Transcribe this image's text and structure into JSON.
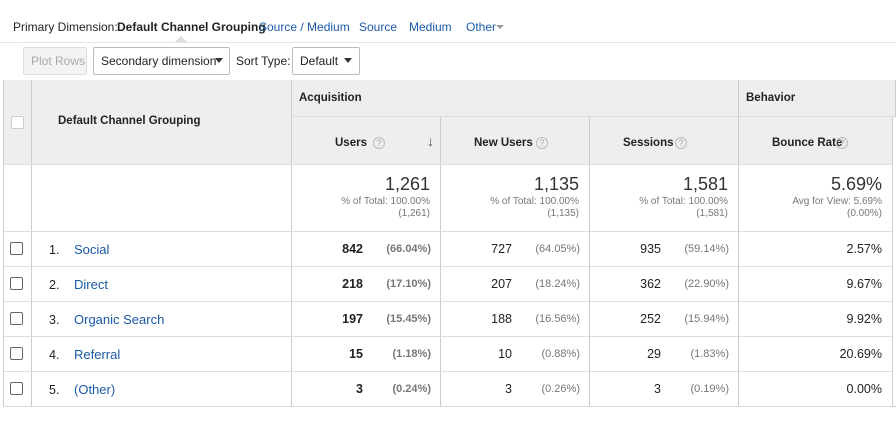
{
  "toolbar": {
    "primary_label": "Primary Dimension:",
    "dimensions": [
      "Default Channel Grouping",
      "Source / Medium",
      "Source",
      "Medium",
      "Other"
    ],
    "plot_rows": "Plot Rows",
    "secondary": "Secondary dimension",
    "sort_label": "Sort Type:",
    "sort": "Default"
  },
  "table": {
    "dimension_header": "Default Channel Grouping",
    "groups": [
      "Acquisition",
      "Behavior"
    ],
    "columns": [
      "Users",
      "New Users",
      "Sessions",
      "Bounce Rate"
    ],
    "totals": [
      {
        "value": "1,261",
        "line1": "% of Total: 100.00%",
        "line2": "(1,261)"
      },
      {
        "value": "1,135",
        "line1": "% of Total: 100.00%",
        "line2": "(1,135)"
      },
      {
        "value": "1,581",
        "line1": "% of Total: 100.00%",
        "line2": "(1,581)"
      },
      {
        "value": "5.69%",
        "line1": "Avg for View: 5.69%",
        "line2": "(0.00%)"
      }
    ],
    "rows": [
      {
        "index": "1.",
        "name": "Social",
        "cells": [
          {
            "value": "842",
            "pct": "(66.04%)"
          },
          {
            "value": "727",
            "pct": "(64.05%)"
          },
          {
            "value": "935",
            "pct": "(59.14%)"
          },
          {
            "value": "2.57%"
          }
        ]
      },
      {
        "index": "2.",
        "name": "Direct",
        "cells": [
          {
            "value": "218",
            "pct": "(17.10%)"
          },
          {
            "value": "207",
            "pct": "(18.24%)"
          },
          {
            "value": "362",
            "pct": "(22.90%)"
          },
          {
            "value": "9.67%"
          }
        ]
      },
      {
        "index": "3.",
        "name": "Organic Search",
        "cells": [
          {
            "value": "197",
            "pct": "(15.45%)"
          },
          {
            "value": "188",
            "pct": "(16.56%)"
          },
          {
            "value": "252",
            "pct": "(15.94%)"
          },
          {
            "value": "9.92%"
          }
        ]
      },
      {
        "index": "4.",
        "name": "Referral",
        "cells": [
          {
            "value": "15",
            "pct": "(1.18%)"
          },
          {
            "value": "10",
            "pct": "(0.88%)"
          },
          {
            "value": "29",
            "pct": "(1.83%)"
          },
          {
            "value": "20.69%"
          }
        ]
      },
      {
        "index": "5.",
        "name": "(Other)",
        "cells": [
          {
            "value": "3",
            "pct": "(0.24%)"
          },
          {
            "value": "3",
            "pct": "(0.26%)"
          },
          {
            "value": "3",
            "pct": "(0.19%)"
          },
          {
            "value": "0.00%"
          }
        ]
      }
    ]
  }
}
